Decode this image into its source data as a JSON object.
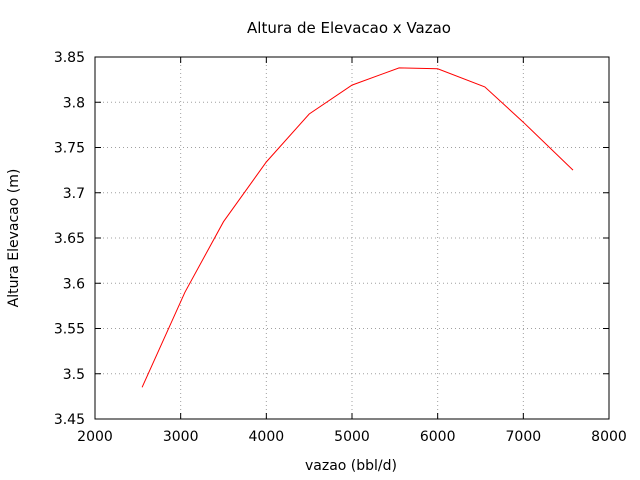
{
  "chart_data": {
    "type": "line",
    "title": "Altura de Elevacao x Vazao",
    "xlabel": "vazao (bbl/d)",
    "ylabel": "Altura Elevacao (m)",
    "xlim": [
      2000,
      8000
    ],
    "ylim": [
      3.45,
      3.85
    ],
    "xticks": [
      "2000",
      "3000",
      "4000",
      "5000",
      "6000",
      "7000",
      "8000"
    ],
    "yticks": [
      "3.45",
      "3.5",
      "3.55",
      "3.6",
      "3.65",
      "3.7",
      "3.75",
      "3.8",
      "3.85"
    ],
    "grid": true,
    "series": [
      {
        "color": "#ff0000",
        "x": [
          2550,
          3050,
          3500,
          4000,
          4500,
          5000,
          5550,
          6000,
          6550,
          7000,
          7580
        ],
        "y": [
          3.485,
          3.59,
          3.668,
          3.734,
          3.787,
          3.819,
          3.838,
          3.837,
          3.817,
          3.778,
          3.725
        ]
      }
    ]
  }
}
